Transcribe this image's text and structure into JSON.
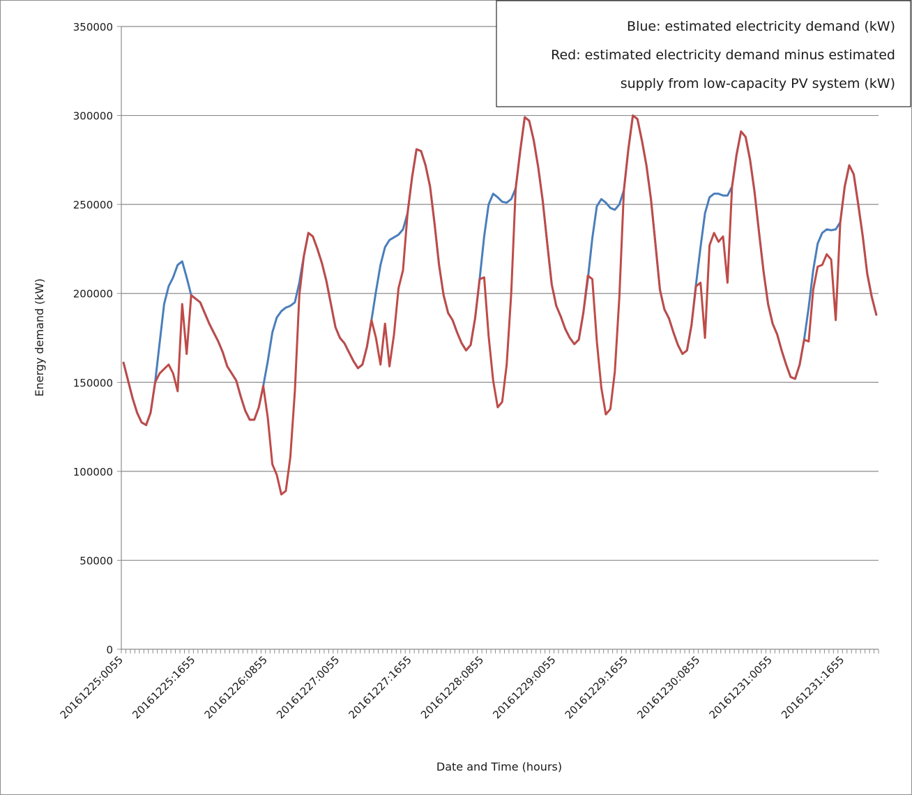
{
  "chart_data": {
    "type": "line",
    "xlabel": "Date and Time (hours)",
    "ylabel": "Energy demand (kW)",
    "ylim": [
      0,
      350000
    ],
    "yticks": [
      0,
      50000,
      100000,
      150000,
      200000,
      250000,
      300000,
      350000
    ],
    "grid": true,
    "legend_placement": "top-right",
    "legend_lines": [
      "Blue: estimated electricity demand (kW)",
      "Red: estimated electricity demand minus estimated",
      "supply from low-capacity PV system (kW)"
    ],
    "x_tick_labels": [
      "20161225:0055",
      "20161225:1655",
      "20161226:0855",
      "20161227:0055",
      "20161227:1655",
      "20161228:0855",
      "20161229:0055",
      "20161229:1655",
      "20161230:0855",
      "20161231:0055",
      "20161231:1655"
    ],
    "x_label_step_hours": 16,
    "n_points": 168,
    "series": [
      {
        "color": "#4a7ebb",
        "values": [
          161000,
          151000,
          141000,
          133000,
          127500,
          126000,
          133000,
          150000,
          172000,
          194000,
          204000,
          209000,
          216000,
          218000,
          209000,
          199000,
          197000,
          195000,
          189000,
          183000,
          178000,
          173000,
          167000,
          159000,
          155000,
          151000,
          142000,
          134000,
          129000,
          129000,
          136000,
          148000,
          162000,
          178000,
          186500,
          190000,
          192000,
          193000,
          195000,
          206000,
          221000,
          234000,
          232000,
          225000,
          217000,
          207000,
          194000,
          181000,
          175000,
          172000,
          167000,
          162000,
          158000,
          160000,
          170000,
          185000,
          201000,
          216000,
          226000,
          230000,
          231500,
          233000,
          236000,
          245000,
          265000,
          281000,
          280000,
          272000,
          260000,
          239000,
          216000,
          199000,
          189000,
          185000,
          178000,
          172000,
          168000,
          171000,
          186000,
          208000,
          232000,
          250000,
          256000,
          254000,
          251500,
          251000,
          253000,
          259000,
          280000,
          299000,
          297000,
          286000,
          271000,
          252000,
          228000,
          205000,
          193000,
          187000,
          180000,
          175000,
          171500,
          174000,
          189000,
          208000,
          231000,
          249000,
          253000,
          251000,
          248000,
          247000,
          250000,
          258000,
          281000,
          300000,
          298000,
          286000,
          272000,
          253000,
          228000,
          202000,
          191000,
          186000,
          178000,
          171000,
          166000,
          168000,
          182000,
          205000,
          226000,
          245000,
          254000,
          256000,
          256000,
          255000,
          255000,
          260000,
          278000,
          291000,
          288000,
          275000,
          257000,
          234000,
          212000,
          194000,
          183000,
          177000,
          168000,
          160000,
          153000,
          152000,
          160000,
          174000,
          192000,
          213000,
          228000,
          234000,
          236000,
          235500,
          236000,
          240000,
          260000,
          272000,
          267000,
          250000,
          232000,
          211000,
          198000,
          188000
        ]
      },
      {
        "color": "#be4b48",
        "values": [
          161000,
          151000,
          141000,
          133000,
          127500,
          126000,
          133000,
          150000,
          155000,
          157500,
          160000,
          155000,
          145000,
          194000,
          166000,
          199000,
          197000,
          195000,
          189000,
          183000,
          178000,
          173000,
          167000,
          159000,
          155000,
          151000,
          142000,
          134000,
          129000,
          129000,
          136000,
          148000,
          130000,
          104000,
          98000,
          87000,
          89000,
          108000,
          145000,
          199000,
          221000,
          234000,
          232000,
          225000,
          217000,
          207000,
          194000,
          181000,
          175000,
          172000,
          167000,
          162000,
          158000,
          160000,
          170000,
          185000,
          175000,
          160000,
          183000,
          159000,
          177000,
          203000,
          213000,
          245000,
          265000,
          281000,
          280000,
          272000,
          260000,
          239000,
          216000,
          199000,
          189000,
          185000,
          178000,
          172000,
          168000,
          171000,
          186000,
          208000,
          209000,
          176000,
          151000,
          136000,
          139000,
          160000,
          200000,
          259000,
          280000,
          299000,
          297000,
          286000,
          271000,
          252000,
          228000,
          205000,
          193000,
          187000,
          180000,
          175000,
          171500,
          174000,
          189000,
          210000,
          208000,
          173000,
          147000,
          132000,
          135000,
          156000,
          198000,
          258000,
          281000,
          300000,
          298000,
          286000,
          272000,
          253000,
          228000,
          202000,
          191000,
          186000,
          178000,
          171000,
          166000,
          168000,
          182000,
          204000,
          206000,
          175000,
          227000,
          234000,
          229000,
          232000,
          206000,
          260000,
          278000,
          291000,
          288000,
          275000,
          257000,
          234000,
          212000,
          194000,
          183000,
          177000,
          168000,
          160000,
          153000,
          152000,
          160000,
          174000,
          173000,
          202000,
          215000,
          216000,
          222000,
          219000,
          185000,
          240000,
          260000,
          272000,
          267000,
          250000,
          232000,
          211000,
          198000,
          188000
        ]
      }
    ]
  }
}
